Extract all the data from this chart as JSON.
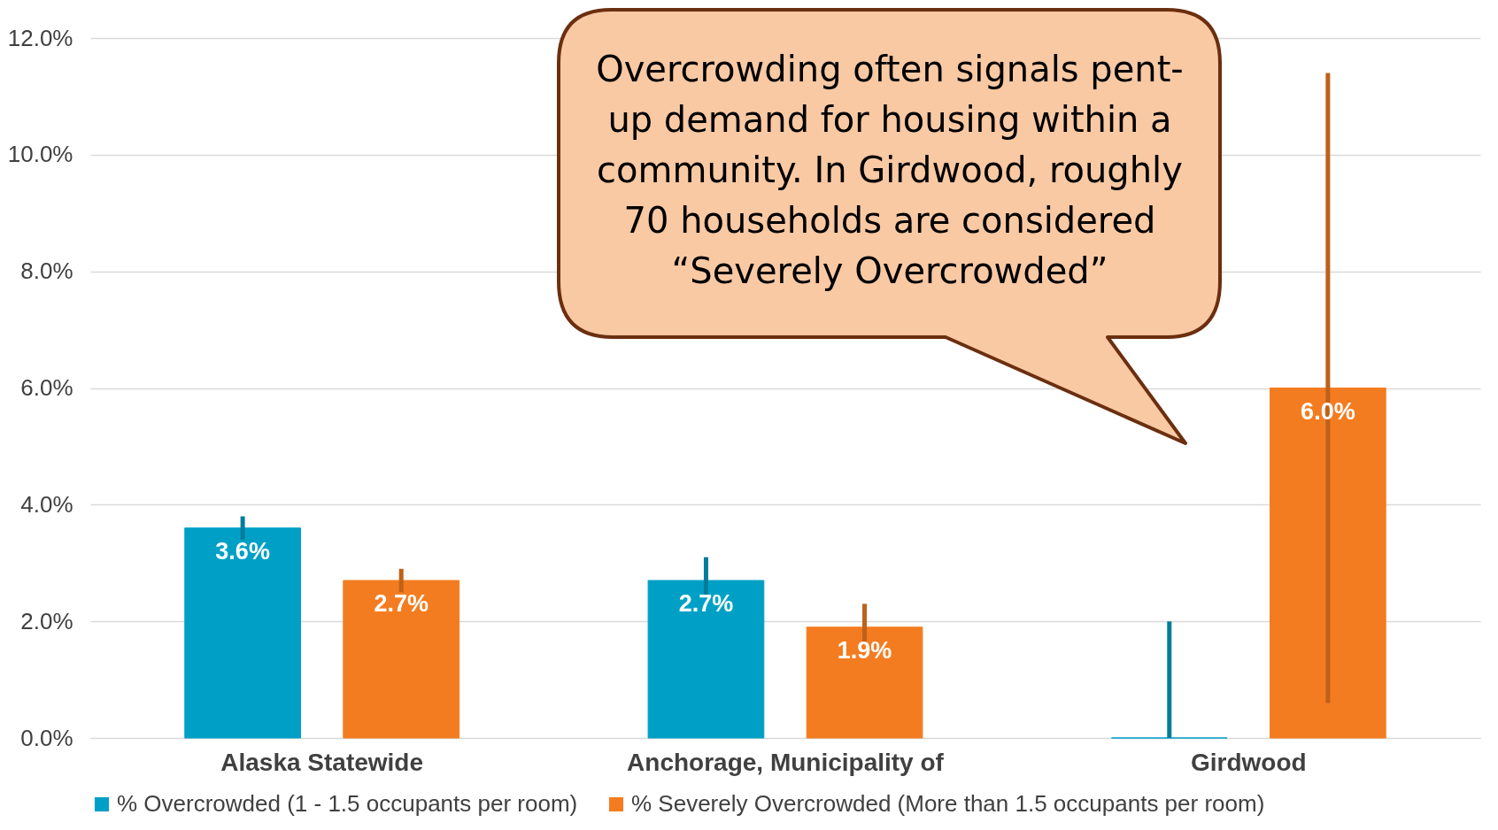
{
  "chart_data": {
    "type": "bar",
    "categories": [
      "Alaska Statewide",
      "Anchorage, Municipality of",
      "Girdwood"
    ],
    "series": [
      {
        "name": "% Overcrowded (1 - 1.5 occupants per room)",
        "color": "#00a0c6",
        "values": [
          3.6,
          2.7,
          0
        ],
        "errors": [
          [
            3.4,
            3.8
          ],
          [
            2.4,
            3.1
          ],
          [
            0,
            2.0
          ]
        ],
        "value_labels": [
          "3.6%",
          "2.7%",
          null
        ]
      },
      {
        "name": "% Severely Overcrowded (More than 1.5 occupants per room)",
        "color": "#f47c20",
        "values": [
          2.7,
          1.9,
          6.0
        ],
        "errors": [
          [
            2.5,
            2.9
          ],
          [
            1.6,
            2.3
          ],
          [
            0.6,
            11.4
          ]
        ],
        "value_labels": [
          "2.7%",
          "1.9%",
          "6.0%"
        ]
      }
    ],
    "ylim": [
      0,
      12
    ],
    "yticks": [
      {
        "value": 0,
        "label": "0.0%"
      },
      {
        "value": 2,
        "label": "2.0%"
      },
      {
        "value": 4,
        "label": "4.0%"
      },
      {
        "value": 6,
        "label": "6.0%"
      },
      {
        "value": 8,
        "label": "8.0%"
      },
      {
        "value": 10,
        "label": "10.0%"
      },
      {
        "value": 12,
        "label": "12.0%"
      }
    ],
    "grid": "y",
    "legend": "bottom",
    "annotations": [
      "Overcrowding often signals pent-up demand for housing within a community. In Girdwood, roughly 70 households are considered “Severely Overcrowded”"
    ]
  }
}
